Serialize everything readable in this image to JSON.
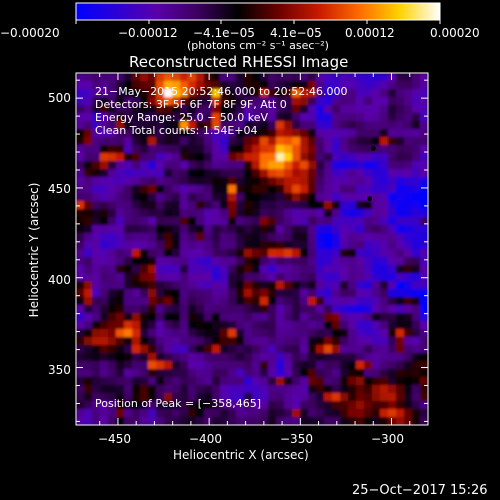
{
  "chart_data": {
    "type": "heatmap",
    "title": "Reconstructed RHESSI Image",
    "xlabel": "Heliocentric X (arcsec)",
    "ylabel": "Heliocentric Y (arcsec)",
    "xlim": [
      -473,
      -280
    ],
    "ylim": [
      318,
      514
    ],
    "x_ticks": [
      -450,
      -400,
      -350,
      -300
    ],
    "x_tick_labels": [
      "−450",
      "−400",
      "−350",
      "−300"
    ],
    "y_ticks": [
      350,
      400,
      450,
      500
    ],
    "y_tick_labels": [
      "350",
      "400",
      "450",
      "500"
    ],
    "colorbar": {
      "range": [
        -0.0002,
        0.0002
      ],
      "tick_labels": [
        "−0.00020",
        "−0.00012",
        "−4.1e−05",
        "4.1e−05",
        "0.00012",
        "0.00020"
      ],
      "label": "(photons cm⁻² s⁻¹ asec⁻²)",
      "colormap": [
        "#0000ff",
        "#2b00d6",
        "#5a00a8",
        "#3d0060",
        "#000000",
        "#6a0000",
        "#c81a00",
        "#ff6a00",
        "#ffd200",
        "#ffffff"
      ]
    },
    "info_lines": [
      "21−May−2015 20:52:46.000 to 20:52:46.000",
      "Detectors: 3F 5F 6F 7F 8F 9F, Att 0",
      "Energy Range: 25.0 − 50.0 keV",
      "Clean     Total counts: 1.54E+04"
    ],
    "peak_note": "Position of Peak = [−358,465]",
    "peak": {
      "x": -358,
      "y": 465,
      "value": 0.0002
    },
    "sources": [
      {
        "x": -358,
        "y": 465,
        "value": 1.0
      },
      {
        "x": -425,
        "y": 505,
        "value": 0.85
      },
      {
        "x": -303,
        "y": 335,
        "value": 0.55
      },
      {
        "x": -452,
        "y": 360,
        "value": 0.3
      },
      {
        "x": -378,
        "y": 380,
        "value": 0.3
      }
    ],
    "markers": [
      {
        "x": -310,
        "y": 472
      },
      {
        "x": -312,
        "y": 444
      }
    ]
  },
  "footer": {
    "timestamp": "25−Oct−2017 15:26"
  }
}
